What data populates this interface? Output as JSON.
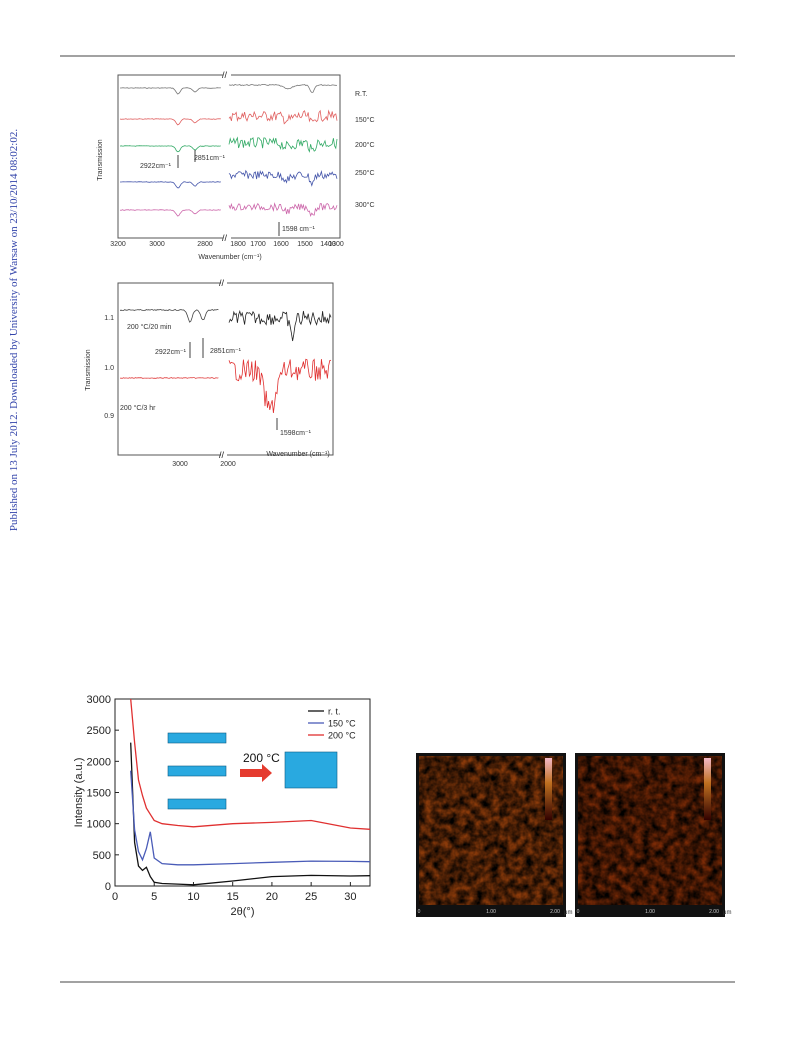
{
  "sidebar": "Published on 13 July 2012. Downloaded by University of Warsaw on 23/10/2014 08:02:02.",
  "figure1": {
    "ylabel": "Transmission",
    "xlabel": "Wavenumber (cm⁻¹)",
    "xtick_labels": [
      3200,
      3000,
      2800,
      1800,
      1700,
      1600,
      1500,
      1400,
      1300
    ],
    "curve_labels": [
      "R.T.",
      "150°C",
      "200°C",
      "250°C",
      "300°C"
    ],
    "annotations": [
      "2922cm⁻¹",
      "2851cm⁻¹",
      "1598 cm⁻¹"
    ]
  },
  "figure2": {
    "ylabel": "Transmission",
    "xlabel": "Wavenumber (cm⁻¹)",
    "ytick_labels": [
      "1.1",
      "1.0",
      "0.9"
    ],
    "xtick_labels": [
      3000,
      2000
    ],
    "curve_labels": [
      "200 °C/20 min",
      "200 °C/3 hr"
    ],
    "annotations": [
      "2922cm⁻¹",
      "2851cm⁻¹",
      "1598cm⁻¹"
    ]
  },
  "figure3": {
    "type": "line",
    "xlabel": "2θ(°)",
    "ylabel": "Intensity (a.u.)",
    "inset_label": "200 °C",
    "x": [
      2,
      2.5,
      3,
      3.5,
      4,
      4.5,
      5,
      6,
      8,
      10,
      15,
      20,
      25,
      30,
      32.5
    ],
    "series": [
      {
        "name": "r. t.",
        "color": "#111111",
        "values": [
          2300,
          700,
          320,
          250,
          300,
          150,
          60,
          40,
          30,
          20,
          80,
          150,
          170,
          160,
          165
        ]
      },
      {
        "name": "150 °C",
        "color": "#4a5cb8",
        "values": [
          1850,
          900,
          550,
          420,
          600,
          870,
          450,
          360,
          340,
          340,
          360,
          380,
          400,
          395,
          390
        ]
      },
      {
        "name": "200 °C",
        "color": "#e03030",
        "values": [
          3000,
          2300,
          1700,
          1450,
          1250,
          1150,
          1050,
          1000,
          970,
          950,
          1000,
          1020,
          1050,
          930,
          910
        ]
      }
    ],
    "xlim": [
      0,
      32.5
    ],
    "ylim": [
      0,
      3000
    ],
    "xticks": [
      0,
      5,
      10,
      15,
      20,
      25,
      30
    ],
    "yticks": [
      0,
      500,
      1000,
      1500,
      2000,
      2500,
      3000
    ],
    "legend": "upper right"
  },
  "figure4": {
    "axis_labels": [
      "0",
      "1.00",
      "2.00"
    ],
    "unit": "μm"
  }
}
